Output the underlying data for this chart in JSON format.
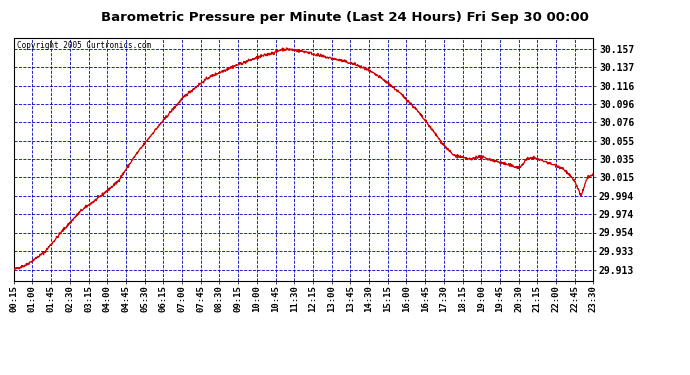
{
  "title": "Barometric Pressure per Minute (Last 24 Hours) Fri Sep 30 00:00",
  "copyright": "Copyright 2005 Curtronics.com",
  "background_color": "#ffffff",
  "line_color": "#cc0000",
  "grid_color": "#0000bb",
  "y_tick_labels": [
    29.913,
    29.933,
    29.954,
    29.974,
    29.994,
    30.015,
    30.035,
    30.055,
    30.076,
    30.096,
    30.116,
    30.137,
    30.157
  ],
  "ylim_min": 29.9,
  "ylim_max": 30.17,
  "x_tick_labels": [
    "00:15",
    "01:00",
    "01:45",
    "02:30",
    "03:15",
    "04:00",
    "04:45",
    "05:30",
    "06:15",
    "07:00",
    "07:45",
    "08:30",
    "09:15",
    "10:00",
    "10:45",
    "11:30",
    "12:15",
    "13:00",
    "13:45",
    "14:30",
    "15:15",
    "16:00",
    "16:45",
    "17:30",
    "18:15",
    "19:00",
    "19:45",
    "20:30",
    "21:15",
    "22:00",
    "22:45",
    "23:30"
  ],
  "key_times": [
    0,
    2,
    5,
    8,
    11,
    14,
    17,
    20,
    23,
    26,
    28,
    30,
    32,
    34,
    36,
    38,
    40,
    42,
    43,
    44,
    45,
    46,
    47,
    48,
    49,
    50,
    52,
    54,
    56,
    58,
    60,
    62,
    64,
    66,
    68,
    70,
    71,
    72,
    73,
    74,
    75,
    76,
    77,
    78,
    79,
    80,
    81,
    82,
    83,
    84,
    85,
    86,
    87,
    88,
    89,
    90,
    91,
    92,
    93,
    94,
    95
  ],
  "key_vals": [
    29.913,
    29.918,
    29.932,
    29.956,
    29.978,
    29.993,
    30.01,
    30.04,
    30.066,
    30.09,
    30.105,
    30.116,
    30.126,
    30.132,
    30.138,
    30.143,
    30.148,
    30.152,
    30.154,
    30.157,
    30.157,
    30.156,
    30.155,
    30.154,
    30.152,
    30.15,
    30.147,
    30.144,
    30.14,
    30.134,
    30.126,
    30.116,
    30.104,
    30.09,
    30.073,
    30.055,
    30.047,
    30.04,
    30.038,
    30.036,
    30.035,
    30.038,
    30.037,
    30.035,
    30.033,
    30.031,
    30.029,
    30.027,
    30.026,
    30.035,
    30.037,
    30.035,
    30.033,
    30.03,
    30.028,
    30.025,
    30.018,
    30.01,
    29.994,
    30.015,
    30.018
  ]
}
